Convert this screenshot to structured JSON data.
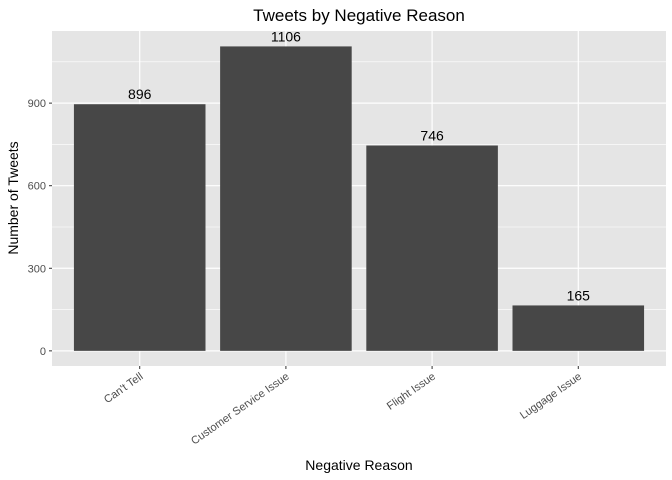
{
  "chart_data": {
    "type": "bar",
    "title": "Tweets by Negative Reason",
    "xlabel": "Negative Reason",
    "ylabel": "Number of Tweets",
    "categories": [
      "Can't Tell",
      "Customer Service Issue",
      "Flight Issue",
      "Luggage Issue"
    ],
    "values": [
      896,
      1106,
      746,
      165
    ],
    "ylim": [
      -55,
      1162
    ],
    "yticks": [
      0,
      300,
      600,
      900
    ],
    "grid": true,
    "legend": "none",
    "colors": {
      "panel": "#e5e5e5",
      "grid": "#ffffff",
      "bar": "#474747"
    }
  }
}
